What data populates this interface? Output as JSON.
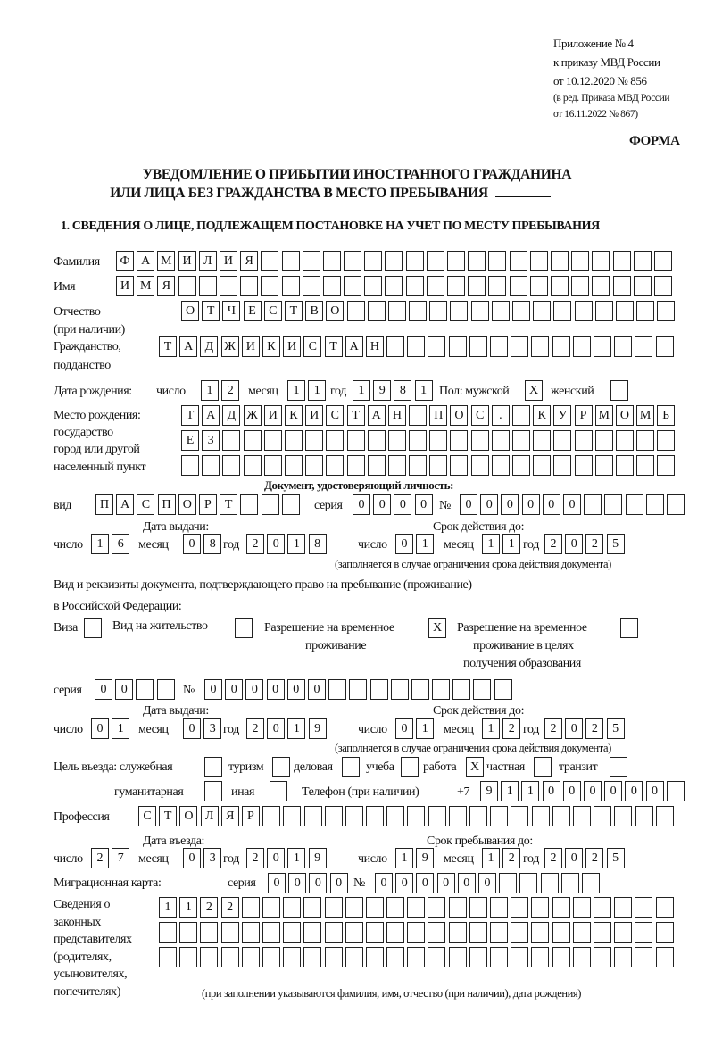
{
  "header": {
    "appendix": [
      "Приложение № 4",
      "к приказу МВД России",
      "от 10.12.2020 № 856"
    ],
    "revision": [
      "(в ред. Приказа МВД России",
      "от 16.11.2022 № 867)"
    ],
    "form_label": "ФОРМА",
    "title_line1": "УВЕДОМЛЕНИЕ О ПРИБЫТИИ ИНОСТРАННОГО ГРАЖДАНИНА",
    "title_line2": "ИЛИ ЛИЦА БЕЗ ГРАЖДАНСТВА В МЕСТО ПРЕБЫВАНИЯ",
    "section1": "1. СВЕДЕНИЯ О ЛИЦЕ, ПОДЛЕЖАЩЕМ ПОСТАНОВКЕ НА УЧЕТ ПО МЕСТУ ПРЕБЫВАНИЯ"
  },
  "person": {
    "surname_label": "Фамилия",
    "surname": "ФАМИЛИЯ",
    "name_label": "Имя",
    "name": "ИМЯ",
    "patronymic_label": [
      "Отчество",
      "(при наличии)"
    ],
    "patronymic": "ОТЧЕСТВО",
    "citizenship_label": [
      "Гражданство,",
      "подданство"
    ],
    "citizenship": "ТАДЖИКИСТАН",
    "birth": {
      "label": "Дата рождения:",
      "day_label": "число",
      "day": "12",
      "month_label": "месяц",
      "month": "11",
      "year_label": "год",
      "year": "1981"
    },
    "sex": {
      "label": "Пол: мужской",
      "male": "X",
      "female_label": "женский",
      "female": ""
    },
    "birthplace_label": [
      "Место рождения:",
      "государство",
      "город или другой",
      "населенный пункт"
    ],
    "birthplace": [
      "ТАДЖИКИСТАН ПОС. КУРМОМБ",
      "ЕЗ",
      ""
    ]
  },
  "id_doc": {
    "heading": "Документ, удостоверяющий личность:",
    "type_label": "вид",
    "type": "ПАСПОРТ",
    "series_label": "серия",
    "series": "0000",
    "number_label": "№",
    "number": "000000",
    "issued_label": "Дата выдачи:",
    "valid_label": "Срок действия до:",
    "issued": {
      "day": "16",
      "month": "08",
      "year": "2018"
    },
    "valid": {
      "day": "01",
      "month": "11",
      "year": "2025"
    },
    "note": "(заполняется в случае ограничения срока действия документа)"
  },
  "labels": {
    "day": "число",
    "month": "месяц",
    "year": "год"
  },
  "stay_doc": {
    "intro": [
      "Вид и реквизиты документа, подтверждающего право на пребывание (проживание)",
      "в Российской Федерации:"
    ],
    "visa_label": "Виза",
    "visa": "",
    "residence_label": "Вид на жительство",
    "residence": "",
    "temp_label": [
      "Разрешение на временное",
      "проживание"
    ],
    "temp": "X",
    "temp_edu_label": [
      "Разрешение на временное",
      "проживание в целях",
      "получения образования"
    ],
    "temp_edu": "",
    "series_label": "серия",
    "series": "00",
    "number_label": "№",
    "number": "000000",
    "issued_label": "Дата выдачи:",
    "valid_label": "Срок действия до:",
    "issued": {
      "day": "01",
      "month": "03",
      "year": "2019"
    },
    "valid": {
      "day": "01",
      "month": "12",
      "year": "2025"
    },
    "note": "(заполняется в случае ограничения срока действия документа)"
  },
  "purpose": {
    "label": "Цель въезда: служебная",
    "service": "",
    "tourism_label": "туризм",
    "tourism": "",
    "business_label": "деловая",
    "business": "",
    "study_label": "учеба",
    "study": "",
    "work_label": "работа",
    "work": "X",
    "private_label": "частная",
    "private": "",
    "transit_label": "транзит",
    "transit": "",
    "humanitarian_label": "гуманитарная",
    "humanitarian": "",
    "other_label": "иная",
    "other": ""
  },
  "phone": {
    "label": "Телефон (при наличии)",
    "prefix": "+7",
    "value": "911000000"
  },
  "profession": {
    "label": "Профессия",
    "value": "СТОЛЯР"
  },
  "entry": {
    "entry_label": "Дата въезда:",
    "stay_label": "Срок пребывания до:",
    "entry": {
      "day": "27",
      "month": "03",
      "year": "2019"
    },
    "stay": {
      "day": "19",
      "month": "12",
      "year": "2025"
    }
  },
  "migration_card": {
    "label": "Миграционная карта:",
    "series_label": "серия",
    "series": "0000",
    "number_label": "№",
    "number": "000000"
  },
  "representatives": {
    "label": [
      "Сведения о",
      "законных",
      "представителях",
      "(родителях,",
      "усыновителях,",
      "попечителях)"
    ],
    "rows": [
      "1122",
      "",
      ""
    ],
    "note": "(при заполнении указываются фамилия, имя, отчество (при наличии), дата рождения)"
  }
}
